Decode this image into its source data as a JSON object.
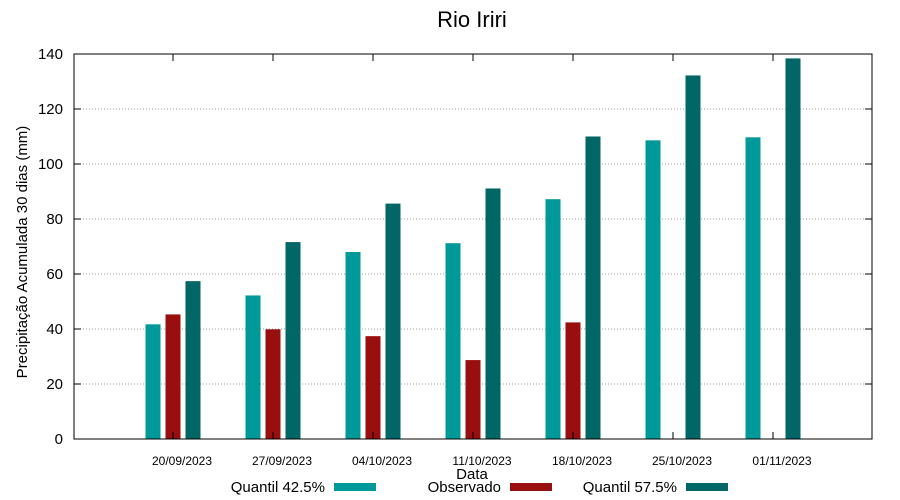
{
  "chart_data": {
    "type": "bar",
    "title": "Rio Iriri",
    "xlabel": "Data",
    "ylabel": "Precipitação Acumulada 30 dias (mm)",
    "ylim": [
      0,
      140
    ],
    "yticks": [
      0,
      20,
      40,
      60,
      80,
      100,
      120,
      140
    ],
    "grid": true,
    "legend_position": "bottom",
    "categories": [
      "20/09/2023",
      "27/09/2023",
      "04/10/2023",
      "11/10/2023",
      "18/10/2023",
      "25/10/2023",
      "01/11/2023"
    ],
    "series": [
      {
        "name": "Quantil 42.5%",
        "color": "#009999",
        "values": [
          41.7,
          52.2,
          68.0,
          71.2,
          87.2,
          108.6,
          109.7
        ]
      },
      {
        "name": "Observado",
        "color": "#990f0f",
        "values": [
          45.3,
          39.9,
          37.4,
          28.7,
          42.4,
          null,
          null
        ]
      },
      {
        "name": "Quantil 57.5%",
        "color": "#006666",
        "values": [
          57.4,
          71.6,
          85.6,
          91.1,
          110.0,
          132.2,
          138.4
        ]
      }
    ]
  }
}
